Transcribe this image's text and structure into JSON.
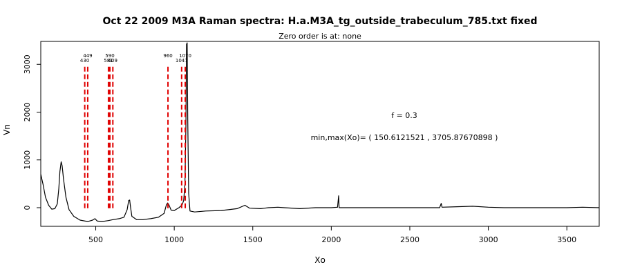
{
  "chart_data": {
    "type": "line",
    "title": "Oct 22 2009 M3A Raman spectra: H.a.M3A_tg_outside_trabeculum_785.txt fixed",
    "subtitle": "Zero order is at:  none",
    "xlabel": "Xo",
    "ylabel": "Vn",
    "xlim": [
      150,
      3706
    ],
    "ylim": [
      -390,
      3480
    ],
    "x_ticks": [
      500,
      1000,
      1500,
      2000,
      2500,
      3000,
      3500
    ],
    "y_ticks": [
      0,
      1000,
      2000,
      3000
    ],
    "annotations": [
      "f =  0.3",
      "min,max(Xo)= ( 150.6121521  , 3705.87670898 )"
    ],
    "peak_markers": [
      {
        "x": 430,
        "label": "430"
      },
      {
        "x": 449,
        "label": "449"
      },
      {
        "x": 581,
        "label": "581"
      },
      {
        "x": 590,
        "label": "590"
      },
      {
        "x": 609,
        "label": "609"
      },
      {
        "x": 960,
        "label": "960"
      },
      {
        "x": 1047,
        "label": "1047"
      },
      {
        "x": 1070,
        "label": "1070"
      }
    ],
    "series": [
      {
        "color": "#000000",
        "points": [
          [
            150,
            700
          ],
          [
            165,
            480
          ],
          [
            180,
            220
          ],
          [
            200,
            50
          ],
          [
            220,
            -30
          ],
          [
            240,
            -20
          ],
          [
            255,
            80
          ],
          [
            265,
            400
          ],
          [
            272,
            760
          ],
          [
            280,
            960
          ],
          [
            286,
            880
          ],
          [
            295,
            600
          ],
          [
            310,
            220
          ],
          [
            330,
            -40
          ],
          [
            360,
            -180
          ],
          [
            400,
            -260
          ],
          [
            450,
            -290
          ],
          [
            480,
            -260
          ],
          [
            495,
            -230
          ],
          [
            510,
            -280
          ],
          [
            540,
            -290
          ],
          [
            580,
            -270
          ],
          [
            610,
            -250
          ],
          [
            650,
            -230
          ],
          [
            680,
            -200
          ],
          [
            700,
            -40
          ],
          [
            710,
            150
          ],
          [
            716,
            160
          ],
          [
            722,
            0
          ],
          [
            730,
            -180
          ],
          [
            760,
            -250
          ],
          [
            800,
            -250
          ],
          [
            850,
            -230
          ],
          [
            900,
            -200
          ],
          [
            935,
            -120
          ],
          [
            950,
            60
          ],
          [
            958,
            100
          ],
          [
            966,
            60
          ],
          [
            980,
            -50
          ],
          [
            1000,
            -60
          ],
          [
            1030,
            0
          ],
          [
            1050,
            60
          ],
          [
            1060,
            150
          ],
          [
            1068,
            500
          ],
          [
            1074,
            1700
          ],
          [
            1078,
            3420
          ],
          [
            1082,
            3450
          ],
          [
            1086,
            1800
          ],
          [
            1092,
            300
          ],
          [
            1100,
            -70
          ],
          [
            1130,
            -90
          ],
          [
            1200,
            -70
          ],
          [
            1300,
            -60
          ],
          [
            1400,
            -20
          ],
          [
            1450,
            50
          ],
          [
            1480,
            -10
          ],
          [
            1550,
            -20
          ],
          [
            1600,
            0
          ],
          [
            1660,
            10
          ],
          [
            1700,
            0
          ],
          [
            1800,
            -20
          ],
          [
            1900,
            0
          ],
          [
            2000,
            0
          ],
          [
            2040,
            10
          ],
          [
            2047,
            250
          ],
          [
            2050,
            0
          ],
          [
            2100,
            0
          ],
          [
            2200,
            0
          ],
          [
            2300,
            0
          ],
          [
            2400,
            0
          ],
          [
            2500,
            0
          ],
          [
            2600,
            0
          ],
          [
            2690,
            0
          ],
          [
            2700,
            90
          ],
          [
            2705,
            10
          ],
          [
            2800,
            20
          ],
          [
            2900,
            30
          ],
          [
            3000,
            10
          ],
          [
            3100,
            0
          ],
          [
            3200,
            0
          ],
          [
            3300,
            0
          ],
          [
            3400,
            0
          ],
          [
            3500,
            0
          ],
          [
            3600,
            10
          ],
          [
            3705,
            0
          ]
        ]
      }
    ]
  }
}
